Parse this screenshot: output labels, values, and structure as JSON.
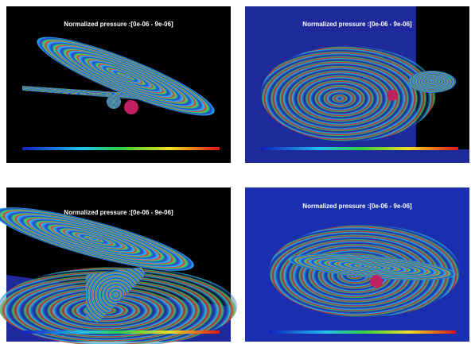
{
  "panels": [
    {
      "title": "Normalized pressure :[0e-06 - 9e-06]"
    },
    {
      "title": "Normalized pressure :[0e-06 - 9e-06]"
    },
    {
      "title": "Normalized pressure :[0e-06 - 9e-06]"
    },
    {
      "title": "Normalized pressure :[0e-06 - 9e-06]"
    }
  ]
}
